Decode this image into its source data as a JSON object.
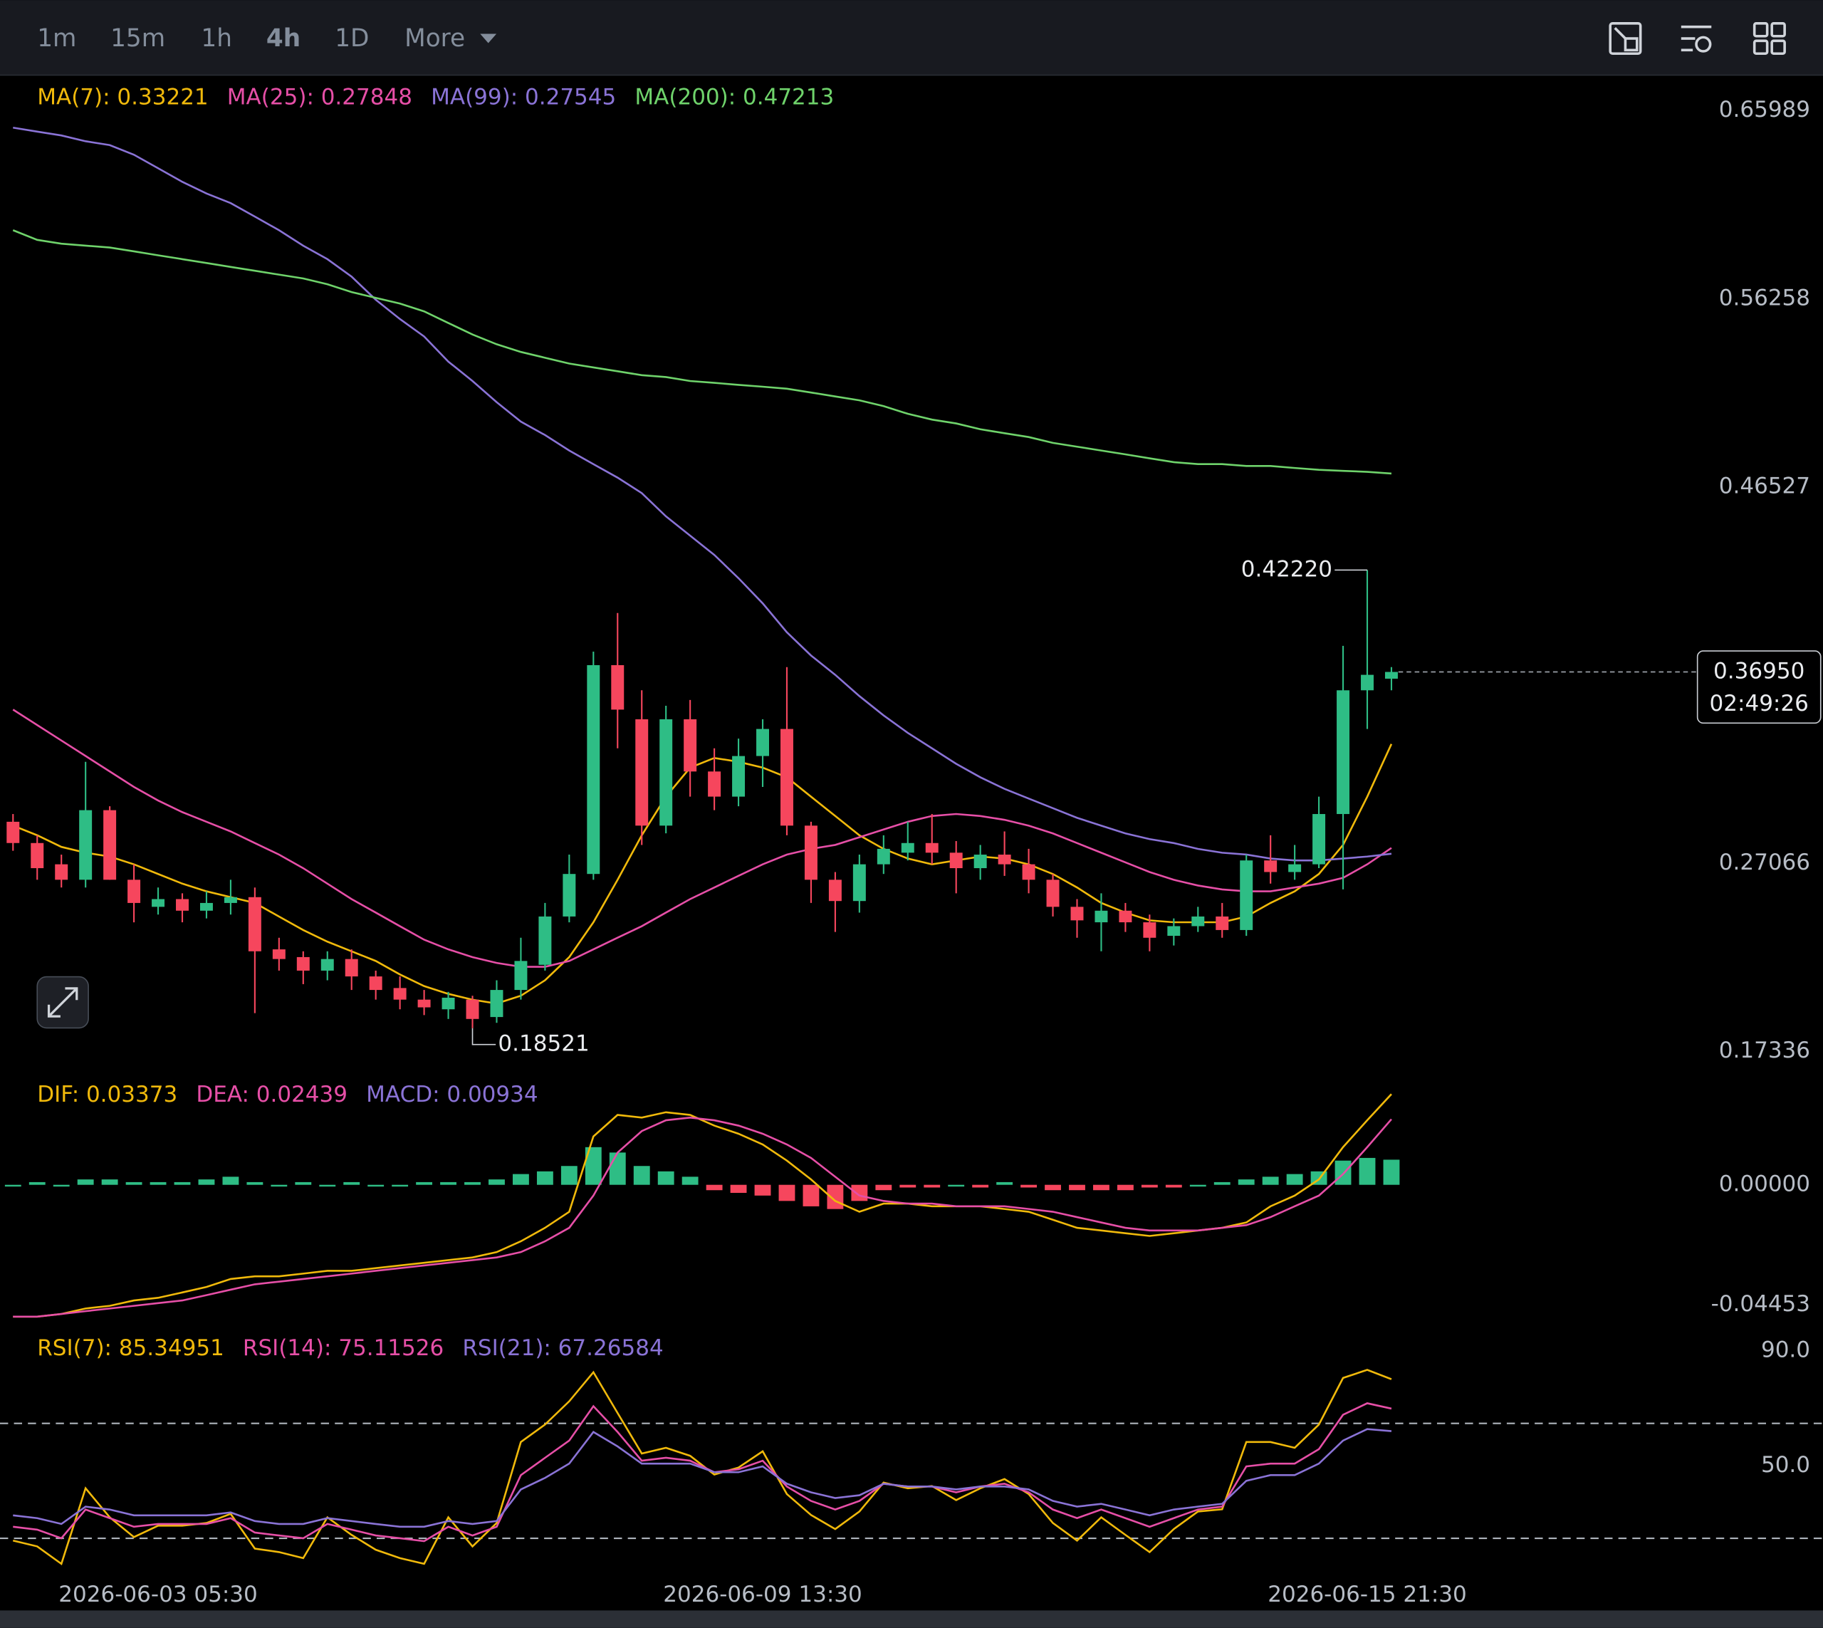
{
  "toolbar": {
    "intervals": [
      "1m",
      "15m",
      "1h",
      "4h",
      "1D"
    ],
    "active": 3,
    "more": "More"
  },
  "chart_data": [
    {
      "type": "candlestick",
      "up_color": "#2ebd85",
      "down_color": "#f6465d",
      "categories": [
        null,
        null,
        null,
        null,
        null,
        null,
        "2026-06-03 05:30",
        null,
        null,
        null,
        null,
        null,
        null,
        null,
        null,
        null,
        null,
        null,
        null,
        null,
        null,
        null,
        null,
        null,
        null,
        null,
        null,
        null,
        null,
        null,
        null,
        "2026-06-09 13:30",
        null,
        null,
        null,
        null,
        null,
        null,
        null,
        null,
        null,
        null,
        null,
        null,
        null,
        null,
        null,
        null,
        null,
        null,
        null,
        null,
        null,
        null,
        null,
        null,
        "2026-06-15 21:30",
        null
      ],
      "open": [
        0.292,
        0.281,
        0.27,
        0.262,
        0.298,
        0.262,
        0.248,
        0.252,
        0.246,
        0.25,
        0.253,
        0.226,
        0.222,
        0.215,
        0.221,
        0.212,
        0.206,
        0.2,
        0.195,
        0.2,
        0.191,
        0.205,
        0.218,
        0.243,
        0.265,
        0.373,
        0.345,
        0.29,
        0.345,
        0.318,
        0.305,
        0.326,
        0.34,
        0.29,
        0.262,
        0.251,
        0.27,
        0.276,
        0.281,
        0.276,
        0.268,
        0.275,
        0.27,
        0.262,
        0.248,
        0.24,
        0.246,
        0.24,
        0.233,
        0.238,
        0.243,
        0.236,
        0.272,
        0.266,
        0.27,
        0.296,
        0.36,
        0.366
      ],
      "high": [
        0.296,
        0.285,
        0.275,
        0.323,
        0.3,
        0.27,
        0.258,
        0.255,
        0.256,
        0.262,
        0.258,
        0.232,
        0.225,
        0.225,
        0.226,
        0.215,
        0.212,
        0.205,
        0.204,
        0.202,
        0.21,
        0.232,
        0.25,
        0.275,
        0.38,
        0.4,
        0.36,
        0.352,
        0.355,
        0.33,
        0.335,
        0.345,
        0.372,
        0.292,
        0.266,
        0.275,
        0.285,
        0.292,
        0.296,
        0.282,
        0.28,
        0.287,
        0.278,
        0.265,
        0.252,
        0.255,
        0.25,
        0.244,
        0.242,
        0.248,
        0.25,
        0.275,
        0.285,
        0.28,
        0.305,
        0.383,
        0.4222,
        0.372
      ],
      "low": [
        0.277,
        0.262,
        0.258,
        0.258,
        0.262,
        0.24,
        0.244,
        0.24,
        0.242,
        0.244,
        0.193,
        0.215,
        0.208,
        0.21,
        0.205,
        0.2,
        0.195,
        0.192,
        0.19,
        0.18521,
        0.188,
        0.2,
        0.215,
        0.24,
        0.262,
        0.33,
        0.28,
        0.286,
        0.305,
        0.298,
        0.3,
        0.31,
        0.285,
        0.25,
        0.235,
        0.245,
        0.265,
        0.272,
        0.27,
        0.255,
        0.262,
        0.264,
        0.255,
        0.243,
        0.232,
        0.225,
        0.235,
        0.225,
        0.228,
        0.235,
        0.232,
        0.233,
        0.26,
        0.262,
        0.268,
        0.257,
        0.34,
        0.36
      ],
      "close": [
        0.281,
        0.268,
        0.262,
        0.298,
        0.262,
        0.25,
        0.252,
        0.246,
        0.25,
        0.253,
        0.225,
        0.221,
        0.215,
        0.221,
        0.212,
        0.205,
        0.2,
        0.196,
        0.201,
        0.19,
        0.205,
        0.22,
        0.243,
        0.265,
        0.373,
        0.35,
        0.29,
        0.345,
        0.318,
        0.305,
        0.326,
        0.34,
        0.29,
        0.262,
        0.251,
        0.27,
        0.278,
        0.281,
        0.276,
        0.268,
        0.275,
        0.27,
        0.262,
        0.248,
        0.241,
        0.246,
        0.24,
        0.232,
        0.238,
        0.243,
        0.236,
        0.272,
        0.266,
        0.27,
        0.296,
        0.36,
        0.368,
        0.3695
      ],
      "series": [
        {
          "name": "MA(7):",
          "color": "#f0b90b",
          "values": [
            0.29,
            0.285,
            0.279,
            0.276,
            0.274,
            0.27,
            0.265,
            0.26,
            0.256,
            0.253,
            0.25,
            0.243,
            0.236,
            0.23,
            0.225,
            0.22,
            0.213,
            0.207,
            0.203,
            0.2,
            0.198,
            0.202,
            0.21,
            0.222,
            0.24,
            0.262,
            0.285,
            0.305,
            0.32,
            0.325,
            0.323,
            0.32,
            0.315,
            0.305,
            0.295,
            0.285,
            0.278,
            0.273,
            0.27,
            0.272,
            0.274,
            0.273,
            0.27,
            0.265,
            0.258,
            0.25,
            0.245,
            0.241,
            0.24,
            0.24,
            0.24,
            0.243,
            0.25,
            0.256,
            0.265,
            0.28,
            0.305,
            0.33221
          ]
        },
        {
          "name": "MA(25):",
          "color": "#e64fa7",
          "values": [
            0.35,
            0.342,
            0.334,
            0.326,
            0.318,
            0.31,
            0.303,
            0.297,
            0.292,
            0.287,
            0.281,
            0.275,
            0.268,
            0.26,
            0.252,
            0.245,
            0.238,
            0.231,
            0.226,
            0.222,
            0.219,
            0.217,
            0.217,
            0.22,
            0.226,
            0.232,
            0.238,
            0.245,
            0.252,
            0.258,
            0.264,
            0.27,
            0.275,
            0.278,
            0.28,
            0.284,
            0.288,
            0.292,
            0.295,
            0.296,
            0.295,
            0.293,
            0.29,
            0.286,
            0.281,
            0.276,
            0.271,
            0.266,
            0.262,
            0.259,
            0.257,
            0.256,
            0.256,
            0.258,
            0.26,
            0.263,
            0.27,
            0.27848
          ]
        },
        {
          "name": "MA(99):",
          "color": "#8a73d6",
          "values": [
            0.651,
            0.649,
            0.647,
            0.644,
            0.642,
            0.637,
            0.63,
            0.623,
            0.617,
            0.612,
            0.605,
            0.598,
            0.59,
            0.583,
            0.574,
            0.562,
            0.552,
            0.543,
            0.53,
            0.52,
            0.509,
            0.499,
            0.492,
            0.484,
            0.477,
            0.47,
            0.462,
            0.45,
            0.44,
            0.43,
            0.418,
            0.405,
            0.39,
            0.378,
            0.368,
            0.357,
            0.347,
            0.338,
            0.33,
            0.322,
            0.315,
            0.309,
            0.304,
            0.299,
            0.294,
            0.29,
            0.286,
            0.283,
            0.281,
            0.278,
            0.276,
            0.275,
            0.273,
            0.272,
            0.272,
            0.273,
            0.274,
            0.27545
          ]
        },
        {
          "name": "MA(200):",
          "color": "#6fd36b",
          "values": [
            0.598,
            0.593,
            0.591,
            0.59,
            0.589,
            0.587,
            0.585,
            0.583,
            0.581,
            0.579,
            0.577,
            0.575,
            0.573,
            0.57,
            0.566,
            0.563,
            0.56,
            0.556,
            0.55,
            0.544,
            0.539,
            0.535,
            0.532,
            0.529,
            0.527,
            0.525,
            0.523,
            0.522,
            0.52,
            0.519,
            0.518,
            0.517,
            0.516,
            0.514,
            0.512,
            0.51,
            0.507,
            0.503,
            0.5,
            0.498,
            0.495,
            0.493,
            0.491,
            0.488,
            0.486,
            0.484,
            0.482,
            0.48,
            0.478,
            0.477,
            0.477,
            0.476,
            0.476,
            0.475,
            0.474,
            0.4735,
            0.473,
            0.47213
          ]
        }
      ],
      "ylim": [
        0.1607,
        0.6779
      ],
      "yticks": [
        0.65989,
        0.56258,
        0.46527,
        0.27066,
        0.17336
      ],
      "max_label": {
        "value": 0.4222,
        "label": "0.42220"
      },
      "min_label": 0.18521,
      "current_price": {
        "value": 0.3695,
        "label": "0.36950",
        "countdown": "02:49:26"
      }
    },
    {
      "type": "macd",
      "up_color": "#2ebd85",
      "down_color": "#f6465d",
      "series": [
        {
          "name": "DIF:",
          "color": "#f0b90b",
          "values": [
            -0.049,
            -0.049,
            -0.048,
            -0.046,
            -0.045,
            -0.043,
            -0.042,
            -0.04,
            -0.038,
            -0.035,
            -0.034,
            -0.034,
            -0.033,
            -0.032,
            -0.032,
            -0.031,
            -0.03,
            -0.029,
            -0.028,
            -0.027,
            -0.025,
            -0.021,
            -0.016,
            -0.01,
            0.018,
            0.026,
            0.025,
            0.027,
            0.026,
            0.022,
            0.019,
            0.015,
            0.009,
            0.002,
            -0.006,
            -0.01,
            -0.007,
            -0.007,
            -0.008,
            -0.008,
            -0.008,
            -0.009,
            -0.01,
            -0.013,
            -0.016,
            -0.017,
            -0.018,
            -0.019,
            -0.018,
            -0.017,
            -0.016,
            -0.014,
            -0.008,
            -0.004,
            0.002,
            0.014,
            0.024,
            0.03373
          ]
        },
        {
          "name": "DEA:",
          "color": "#e64fa7",
          "values": [
            -0.049,
            -0.049,
            -0.048,
            -0.047,
            -0.046,
            -0.045,
            -0.044,
            -0.043,
            -0.041,
            -0.039,
            -0.037,
            -0.036,
            -0.035,
            -0.034,
            -0.033,
            -0.032,
            -0.031,
            -0.03,
            -0.029,
            -0.028,
            -0.027,
            -0.025,
            -0.021,
            -0.016,
            -0.004,
            0.012,
            0.02,
            0.024,
            0.025,
            0.024,
            0.022,
            0.019,
            0.015,
            0.01,
            0.003,
            -0.004,
            -0.006,
            -0.007,
            -0.007,
            -0.008,
            -0.008,
            -0.008,
            -0.009,
            -0.01,
            -0.012,
            -0.014,
            -0.016,
            -0.017,
            -0.017,
            -0.017,
            -0.016,
            -0.015,
            -0.012,
            -0.008,
            -0.004,
            0.004,
            0.014,
            0.02439
          ]
        },
        {
          "name": "MACD:",
          "color": "#8a73d6",
          "type": "bar",
          "values": [
            0.0,
            0.001,
            0.0,
            0.002,
            0.002,
            0.001,
            0.001,
            0.001,
            0.002,
            0.003,
            0.001,
            0.0,
            0.001,
            0.0,
            0.001,
            0.0,
            0.0,
            0.001,
            0.001,
            0.001,
            0.002,
            0.004,
            0.005,
            0.007,
            0.014,
            0.012,
            0.007,
            0.005,
            0.003,
            -0.002,
            -0.003,
            -0.004,
            -0.006,
            -0.008,
            -0.009,
            -0.006,
            -0.002,
            -0.001,
            -0.001,
            0.0,
            -0.001,
            0.001,
            -0.001,
            -0.002,
            -0.002,
            -0.002,
            -0.002,
            -0.001,
            -0.001,
            0.0,
            0.001,
            0.002,
            0.003,
            0.004,
            0.005,
            0.009,
            0.01,
            0.00934
          ]
        }
      ],
      "ylim": [
        -0.0545,
        0.0406
      ],
      "yticks": [
        {
          "value": 0,
          "label": "0.00000"
        },
        {
          "value": -0.04453,
          "label": "-0.04453"
        }
      ]
    },
    {
      "type": "rsi",
      "series": [
        {
          "name": "RSI(7):",
          "color": "#f0b90b",
          "values": [
            29.2,
            27.2,
            21.1,
            47.4,
            37.3,
            30.4,
            34.4,
            34.4,
            35.3,
            38.5,
            26.4,
            25.2,
            23.1,
            37.3,
            31.2,
            26.0,
            23.1,
            21.1,
            37.3,
            27.2,
            35.3,
            63.5,
            69.6,
            77.7,
            87.8,
            73.6,
            59.5,
            61.5,
            58.7,
            52.2,
            54.6,
            60.3,
            45.4,
            38.1,
            33.2,
            39.3,
            49.4,
            47.4,
            48.2,
            43.3,
            47.4,
            50.6,
            45.4,
            35.3,
            29.2,
            37.3,
            31.2,
            25.2,
            33.2,
            39.3,
            40.1,
            63.5,
            63.5,
            61.5,
            69.6,
            85.8,
            88.6,
            85.34951
          ]
        },
        {
          "name": "RSI(14):",
          "color": "#e64fa7",
          "values": [
            34,
            33,
            30,
            40,
            37,
            34,
            35,
            35,
            35,
            37,
            32,
            31,
            30,
            35,
            33,
            31,
            30,
            29,
            34,
            31,
            34,
            52,
            58,
            64,
            76,
            67,
            57,
            58,
            57,
            53,
            54,
            57,
            48,
            43,
            40,
            43,
            49,
            48,
            48,
            46,
            48,
            49,
            46,
            40,
            37,
            40,
            37,
            34,
            37,
            40,
            41,
            55,
            56,
            56,
            61,
            73,
            77,
            75.11526
          ]
        },
        {
          "name": "RSI(21):",
          "color": "#8a73d6",
          "values": [
            38,
            37,
            35,
            41,
            40,
            38,
            38,
            38,
            38,
            39,
            36,
            35,
            35,
            37,
            36,
            35,
            34,
            34,
            36,
            35,
            36,
            47,
            51,
            56,
            67,
            62,
            56,
            56,
            56,
            53,
            53,
            55,
            49,
            46,
            44,
            45,
            49,
            48,
            48,
            47,
            48,
            48,
            47,
            43,
            41,
            42,
            40,
            38,
            40,
            41,
            42,
            50,
            52,
            52,
            56,
            64,
            68,
            67.26584
          ]
        }
      ],
      "ylim": [
        15,
        102
      ],
      "yticks": [
        {
          "value": 90,
          "label": "90.0"
        },
        {
          "value": 50,
          "label": "50.0"
        }
      ],
      "bands": [
        70,
        30
      ]
    }
  ]
}
